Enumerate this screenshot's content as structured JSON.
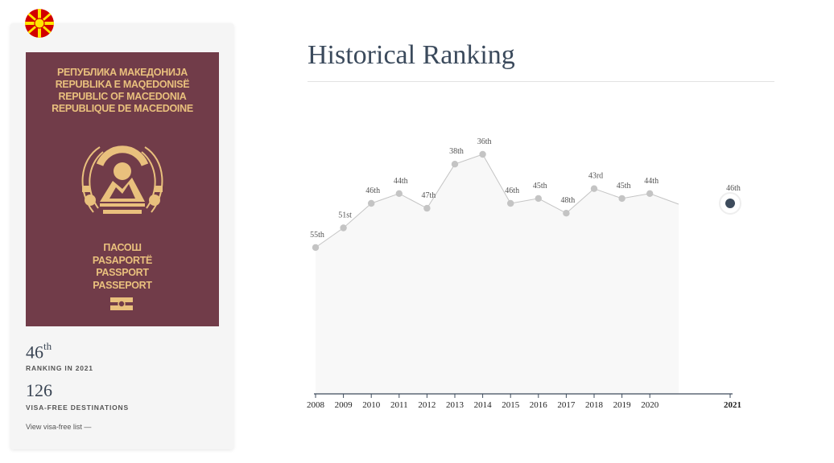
{
  "sidebar": {
    "passport": {
      "top_lines": [
        "РЕПУБЛИКА МАКЕДОНИЈА",
        "REPUBLIKA E MAQEDONISË",
        "REPUBLIC OF MACEDONIA",
        "REPUBLIQUE DE MACEDOINE"
      ],
      "bottom_lines": [
        "ПАСОШ",
        "PASAPORTË",
        "PASSPORT",
        "PASSEPORT"
      ],
      "cover_color": "#713c49",
      "print_color": "#e9c07d"
    },
    "rank_value": "46",
    "rank_suffix": "th",
    "rank_label": "RANKING IN 2021",
    "visa_free_value": "126",
    "visa_free_label": "VISA-FREE DESTINATIONS",
    "visa_free_link": "View visa-free list —"
  },
  "chart_data": {
    "type": "area",
    "title": "Historical Ranking",
    "x": [
      2008,
      2009,
      2010,
      2011,
      2012,
      2013,
      2014,
      2015,
      2016,
      2017,
      2018,
      2019,
      2020,
      2021
    ],
    "values": [
      55,
      51,
      46,
      44,
      47,
      38,
      36,
      46,
      45,
      48,
      43,
      45,
      44,
      46
    ],
    "point_labels": [
      "55th",
      "51st",
      "46th",
      "44th",
      "47th",
      "38th",
      "36th",
      "46th",
      "45th",
      "48th",
      "43rd",
      "45th",
      "44th",
      "46th"
    ],
    "x_tick_labels": [
      "2008",
      "2009",
      "2010",
      "2011",
      "2012",
      "2013",
      "2014",
      "2015",
      "2016",
      "2017",
      "2018",
      "2019",
      "2020",
      "2021"
    ],
    "highlight_year": 2021,
    "axis": "inverted (rank 1 at top)",
    "grid": false,
    "colors": {
      "line": "#c4c4c4",
      "area": "#f8f8f8",
      "point": "#c4c4c4",
      "highlight": "#3d4b5c",
      "axis": "#3d4b5c"
    }
  }
}
